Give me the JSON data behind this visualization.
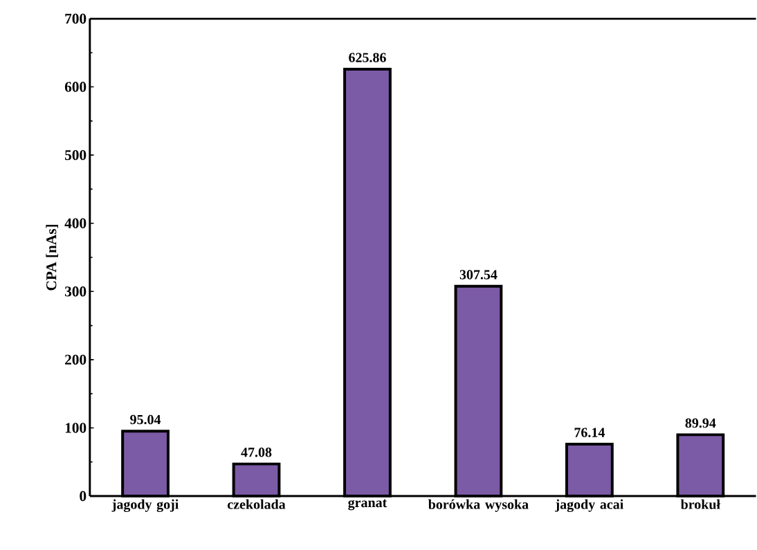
{
  "chart_data": {
    "type": "bar",
    "ylabel": "CPA [nAs]",
    "categories": [
      "jagody goji",
      "czekolada",
      "granat",
      "borówka wysoka",
      "jagody acai",
      "brokuł"
    ],
    "values": [
      95.04,
      47.08,
      625.86,
      307.54,
      76.14,
      89.94
    ],
    "color": "#7b5aa6",
    "ylim": [
      0,
      700
    ],
    "yticks": [
      0,
      100,
      200,
      300,
      400,
      500,
      600,
      700
    ],
    "data_labels": true
  }
}
